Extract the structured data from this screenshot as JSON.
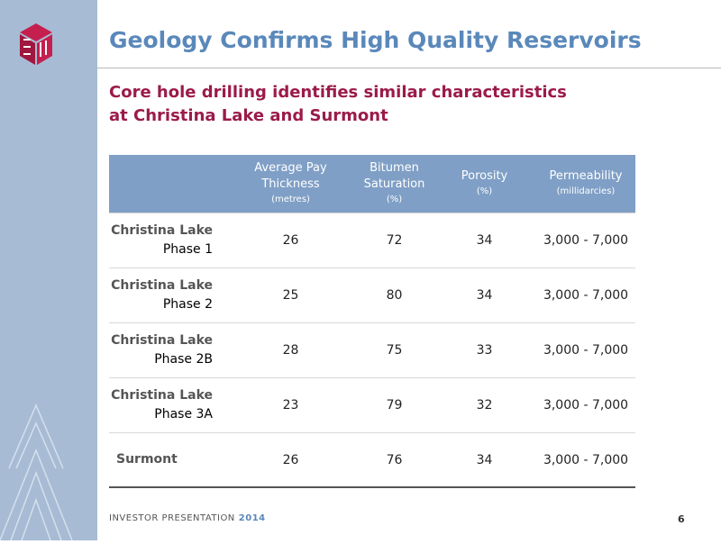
{
  "header": {
    "title": "Geology Confirms High Quality Reservoirs",
    "subtitle": [
      "Core hole drilling identifies similar characteristics",
      "at Christina Lake and Surmont"
    ]
  },
  "table": {
    "columns": [
      {
        "name": [
          "Average Pay",
          "Thickness"
        ],
        "unit": "(metres)"
      },
      {
        "name": [
          "Bitumen",
          "Saturation"
        ],
        "unit": "(%)"
      },
      {
        "name": [
          "Porosity"
        ],
        "unit": "(%)"
      },
      {
        "name": [
          "Permeability"
        ],
        "unit": "(millidarcies)"
      }
    ],
    "rows": [
      {
        "name": [
          "Christina Lake",
          "Phase 1"
        ],
        "cells": [
          26,
          72,
          34,
          "3,000 - 7,000"
        ]
      },
      {
        "name": [
          "Christina Lake",
          "Phase 2"
        ],
        "cells": [
          25,
          80,
          34,
          "3,000 - 7,000"
        ]
      },
      {
        "name": [
          "Christina Lake",
          "Phase 2B"
        ],
        "cells": [
          28,
          75,
          33,
          "3,000 - 7,000"
        ]
      },
      {
        "name": [
          "Christina Lake",
          "Phase 3A"
        ],
        "cells": [
          23,
          79,
          32,
          "3,000 - 7,000"
        ]
      },
      {
        "name": [
          "Surmont"
        ],
        "cells": [
          26,
          76,
          34,
          "3,000 - 7,000"
        ]
      }
    ]
  },
  "footer": {
    "label": "INVESTOR PRESENTATION",
    "year": "2014",
    "page": "6"
  }
}
